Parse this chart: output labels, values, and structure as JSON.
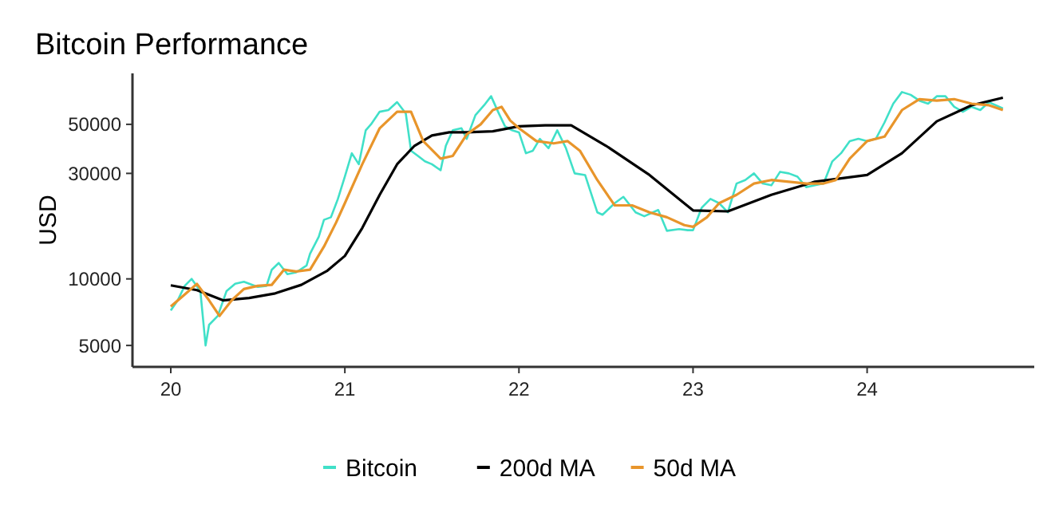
{
  "chart_data": {
    "type": "line",
    "title": "Bitcoin Performance",
    "ylabel": "USD",
    "log": "y",
    "grid": false,
    "legend": "bottom",
    "xlim": [
      19.78,
      24.96
    ],
    "ylim": [
      4000,
      85000
    ],
    "xticks": [
      20,
      21,
      22,
      23,
      24
    ],
    "yticks": [
      5000,
      10000,
      30000,
      50000
    ],
    "line_style": "solid",
    "marker": "none",
    "series": [
      {
        "name": "Bitcoin",
        "color": "#40e0c8",
        "x": [
          20.0,
          20.04,
          20.08,
          20.12,
          20.17,
          20.2,
          20.22,
          20.27,
          20.32,
          20.37,
          20.42,
          20.5,
          20.55,
          20.58,
          20.62,
          20.67,
          20.72,
          20.78,
          20.8,
          20.85,
          20.88,
          20.92,
          20.96,
          21.0,
          21.04,
          21.08,
          21.12,
          21.15,
          21.2,
          21.25,
          21.3,
          21.35,
          21.38,
          21.42,
          21.46,
          21.5,
          21.55,
          21.58,
          21.62,
          21.67,
          21.7,
          21.75,
          21.8,
          21.84,
          21.88,
          21.92,
          21.96,
          22.0,
          22.04,
          22.08,
          22.12,
          22.17,
          22.22,
          22.27,
          22.32,
          22.38,
          22.45,
          22.48,
          22.55,
          22.6,
          22.67,
          22.72,
          22.8,
          22.85,
          22.92,
          22.97,
          23.0,
          23.05,
          23.1,
          23.15,
          23.2,
          23.25,
          23.3,
          23.35,
          23.4,
          23.45,
          23.5,
          23.55,
          23.6,
          23.65,
          23.7,
          23.75,
          23.8,
          23.85,
          23.9,
          23.95,
          24.0,
          24.05,
          24.1,
          24.15,
          24.2,
          24.25,
          24.3,
          24.35,
          24.4,
          24.45,
          24.5,
          24.55,
          24.6,
          24.65,
          24.7,
          24.78
        ],
        "values": [
          7200,
          8000,
          9300,
          10000,
          8800,
          5000,
          6200,
          6800,
          8800,
          9500,
          9700,
          9200,
          9300,
          11000,
          11800,
          10500,
          10700,
          11500,
          13000,
          15500,
          18500,
          19000,
          23000,
          29000,
          37000,
          33000,
          47000,
          50000,
          57000,
          58000,
          63000,
          56000,
          38000,
          36000,
          34000,
          33000,
          31000,
          40000,
          47000,
          48000,
          43000,
          55000,
          61000,
          67000,
          57000,
          49000,
          47000,
          46000,
          37000,
          38000,
          43000,
          39000,
          47000,
          39000,
          30000,
          29500,
          20000,
          19500,
          22000,
          23500,
          20000,
          19200,
          20500,
          16500,
          16800,
          16600,
          16600,
          21000,
          23000,
          22000,
          20000,
          27000,
          28000,
          30000,
          27000,
          26500,
          30500,
          30000,
          29000,
          26000,
          26500,
          27000,
          34000,
          37000,
          42000,
          43000,
          42000,
          43000,
          51000,
          62000,
          70000,
          68000,
          64000,
          62000,
          67000,
          67000,
          60000,
          57000,
          60000,
          58000,
          63000,
          59000
        ]
      },
      {
        "name": "200d MA",
        "color": "#000000",
        "x": [
          20.0,
          20.15,
          20.3,
          20.45,
          20.6,
          20.75,
          20.9,
          21.0,
          21.1,
          21.2,
          21.3,
          21.4,
          21.5,
          21.6,
          21.7,
          21.85,
          22.0,
          22.15,
          22.3,
          22.5,
          22.75,
          23.0,
          23.2,
          23.45,
          23.7,
          24.0,
          24.2,
          24.4,
          24.6,
          24.78
        ],
        "values": [
          9350,
          8900,
          8000,
          8200,
          8600,
          9400,
          10900,
          12700,
          17000,
          24000,
          33000,
          40000,
          44500,
          46000,
          46000,
          46500,
          49000,
          49500,
          49500,
          40000,
          29500,
          20400,
          20200,
          24000,
          27500,
          29500,
          37000,
          51600,
          61000,
          66000
        ]
      },
      {
        "name": "50d MA",
        "color": "#e8952b",
        "x": [
          20.0,
          20.08,
          20.15,
          20.22,
          20.28,
          20.35,
          20.42,
          20.5,
          20.58,
          20.65,
          20.72,
          20.8,
          20.88,
          20.95,
          21.0,
          21.1,
          21.2,
          21.3,
          21.38,
          21.45,
          21.55,
          21.62,
          21.7,
          21.78,
          21.85,
          21.9,
          21.95,
          22.0,
          22.1,
          22.2,
          22.28,
          22.35,
          22.45,
          22.55,
          22.65,
          22.75,
          22.85,
          22.95,
          23.0,
          23.08,
          23.15,
          23.25,
          23.35,
          23.45,
          23.55,
          23.65,
          23.75,
          23.82,
          23.9,
          24.0,
          24.1,
          24.2,
          24.3,
          24.4,
          24.5,
          24.6,
          24.7,
          24.78
        ],
        "values": [
          7500,
          8500,
          9500,
          8000,
          6800,
          8000,
          9000,
          9300,
          9400,
          11000,
          10800,
          11000,
          14000,
          18000,
          22000,
          33000,
          48000,
          57000,
          57000,
          42000,
          35000,
          36000,
          45000,
          50000,
          58000,
          60000,
          52000,
          48000,
          42000,
          41000,
          42000,
          38000,
          28000,
          21500,
          21500,
          20000,
          19000,
          17500,
          17200,
          19000,
          22000,
          24000,
          27000,
          28000,
          27500,
          27000,
          27000,
          28000,
          35000,
          42000,
          44000,
          58000,
          65000,
          64000,
          65000,
          62000,
          61000,
          58000
        ]
      }
    ]
  }
}
